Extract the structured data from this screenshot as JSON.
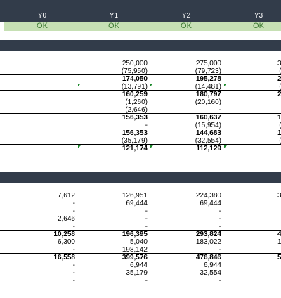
{
  "header": {
    "years": [
      "Y0",
      "Y1",
      "Y2",
      "Y3"
    ]
  },
  "status": [
    "OK",
    "OK",
    "OK",
    "OK"
  ],
  "section1": [
    [
      "",
      "250,000",
      "275,000",
      "302,9"
    ],
    [
      "",
      "(75,950)",
      "(79,723)",
      "(83,6"
    ],
    [
      "",
      "174,050",
      "195,278",
      "218,8"
    ],
    [
      "",
      "(13,791)",
      "(14,481)",
      "(15,2"
    ],
    [
      "",
      "160,259",
      "180,797",
      "203,6"
    ],
    [
      "",
      "(1,260)",
      "(20,160)",
      "(20,"
    ],
    [
      "",
      "(2,646)",
      "-",
      ""
    ],
    [
      "",
      "156,353",
      "160,637",
      "183,4"
    ],
    [
      "",
      "-",
      "(15,954)",
      "(12,8"
    ],
    [
      "",
      "156,353",
      "144,683",
      "170,5"
    ],
    [
      "",
      "(35,179)",
      "(32,554)",
      "(38,4"
    ],
    [
      "",
      "121,174",
      "112,129",
      "132,"
    ]
  ],
  "section2": [
    [
      "7,612",
      "126,951",
      "224,380",
      "347,7"
    ],
    [
      "-",
      "69,444",
      "69,444",
      "69,4"
    ],
    [
      "-",
      "-",
      "-",
      ""
    ],
    [
      "2,646",
      "-",
      "-",
      ""
    ],
    [
      "-",
      "-",
      "-",
      ""
    ],
    [
      "10,258",
      "196,395",
      "293,824",
      "416,6"
    ],
    [
      "6,300",
      "5,040",
      "183,022",
      "162,8"
    ],
    [
      "-",
      "198,142",
      "-",
      ""
    ],
    [
      "16,558",
      "399,576",
      "476,846",
      "579,6"
    ],
    [
      "-",
      "6,944",
      "6,944",
      "6,9"
    ],
    [
      "-",
      "35,179",
      "32,554",
      "38,4"
    ],
    [
      "-",
      "-",
      "-",
      ""
    ]
  ]
}
